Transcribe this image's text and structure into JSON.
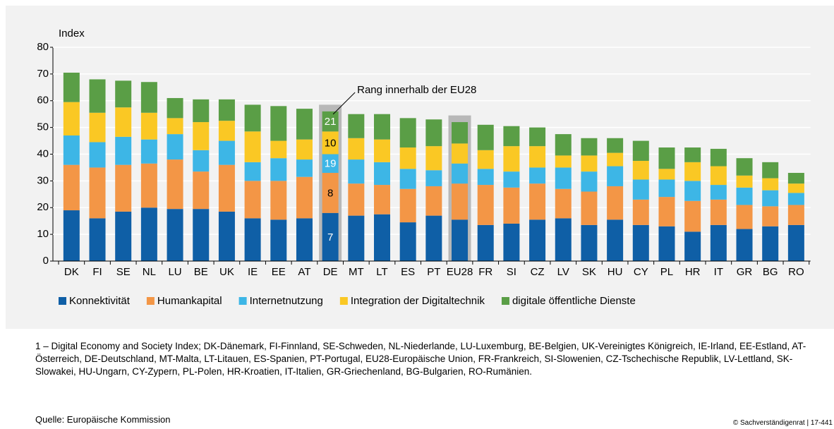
{
  "chart_data": {
    "type": "stacked_bar",
    "y_label": "Index",
    "categories": [
      "DK",
      "FI",
      "SE",
      "NL",
      "LU",
      "BE",
      "UK",
      "IE",
      "EE",
      "AT",
      "DE",
      "MT",
      "LT",
      "ES",
      "PT",
      "EU28",
      "FR",
      "SI",
      "CZ",
      "LV",
      "SK",
      "HU",
      "CY",
      "PL",
      "HR",
      "IT",
      "GR",
      "BG",
      "RO"
    ],
    "series": [
      {
        "name": "Konnektivität",
        "color": "#0f5fa6",
        "values": [
          19,
          16,
          18.5,
          20,
          19.5,
          19.5,
          18.5,
          16,
          15.5,
          16,
          18,
          17,
          17.5,
          14.5,
          17,
          15.5,
          13.5,
          14,
          15.5,
          16,
          13.5,
          15.5,
          13.5,
          13,
          11,
          13.5,
          12,
          13,
          13.5
        ]
      },
      {
        "name": "Humankapital",
        "color": "#f39646",
        "values": [
          17,
          19,
          17.5,
          16.5,
          18.5,
          14,
          17.5,
          14,
          14.5,
          15.5,
          15,
          12,
          11,
          12.5,
          11,
          13.5,
          15,
          13.5,
          13.5,
          11,
          12.5,
          12.5,
          9.5,
          11,
          11.5,
          9.5,
          9,
          7.5,
          7.5
        ]
      },
      {
        "name": "Internetnutzung",
        "color": "#3db6e6",
        "values": [
          11,
          9.5,
          10.5,
          9,
          9.5,
          8,
          9,
          7,
          8.5,
          6.5,
          7,
          9,
          8.5,
          7.5,
          6,
          7.5,
          6,
          6,
          6,
          8,
          7.5,
          7.5,
          7.5,
          6.5,
          7.5,
          5.5,
          6.5,
          6,
          4.5
        ]
      },
      {
        "name": "Integration der Digitaltechnik",
        "color": "#fac824",
        "values": [
          12.5,
          11,
          11,
          10,
          6,
          10.5,
          7.5,
          11.5,
          6.5,
          7.5,
          8.5,
          8,
          8.5,
          8,
          9,
          7.5,
          7,
          9.5,
          8,
          4.5,
          6,
          5,
          7,
          4,
          7,
          7,
          4.5,
          4.5,
          3.5
        ]
      },
      {
        "name": "digitale öffentliche Dienste",
        "color": "#5a9e46",
        "values": [
          11,
          12.5,
          10,
          11.5,
          7.5,
          8.5,
          8,
          10,
          13,
          11.5,
          7.5,
          9,
          9.5,
          11,
          10,
          8,
          9.5,
          7.5,
          7,
          8,
          6.5,
          5.5,
          7.5,
          8,
          5.5,
          6.5,
          6.5,
          6,
          4
        ]
      }
    ],
    "ylim": [
      0,
      80
    ],
    "yticks": [
      0,
      10,
      20,
      30,
      40,
      50,
      60,
      70,
      80
    ],
    "highlight": [
      "DE",
      "EU28"
    ],
    "annotation": {
      "text": "Rang innerhalb der EU28",
      "category": "DE",
      "ranks": [
        7,
        8,
        19,
        10,
        21
      ]
    },
    "footnote": "1 – Digital Economy and Society Index; DK-Dänemark, FI-Finnland, SE-Schweden, NL-Niederlande, LU-Luxemburg, BE-Belgien, UK-Vereinigtes Königreich, IE-Irland, EE-Estland, AT-Österreich, DE-Deutschland, MT-Malta, LT-Litauen, ES-Spanien, PT-Portugal, EU28-Europäische Union, FR-Frankreich, SI-Slowenien, CZ-Tschechische Republik, LV-Lettland, SK-Slowakei, HU-Ungarn, CY-Zypern, PL-Polen, HR-Kroatien, IT-Italien, GR-Griechenland, BG-Bulgarien, RO-Rumänien.",
    "source": "Quelle: Europäische Kommission",
    "copyright": "© Sachverständigenrat | 17-441"
  }
}
